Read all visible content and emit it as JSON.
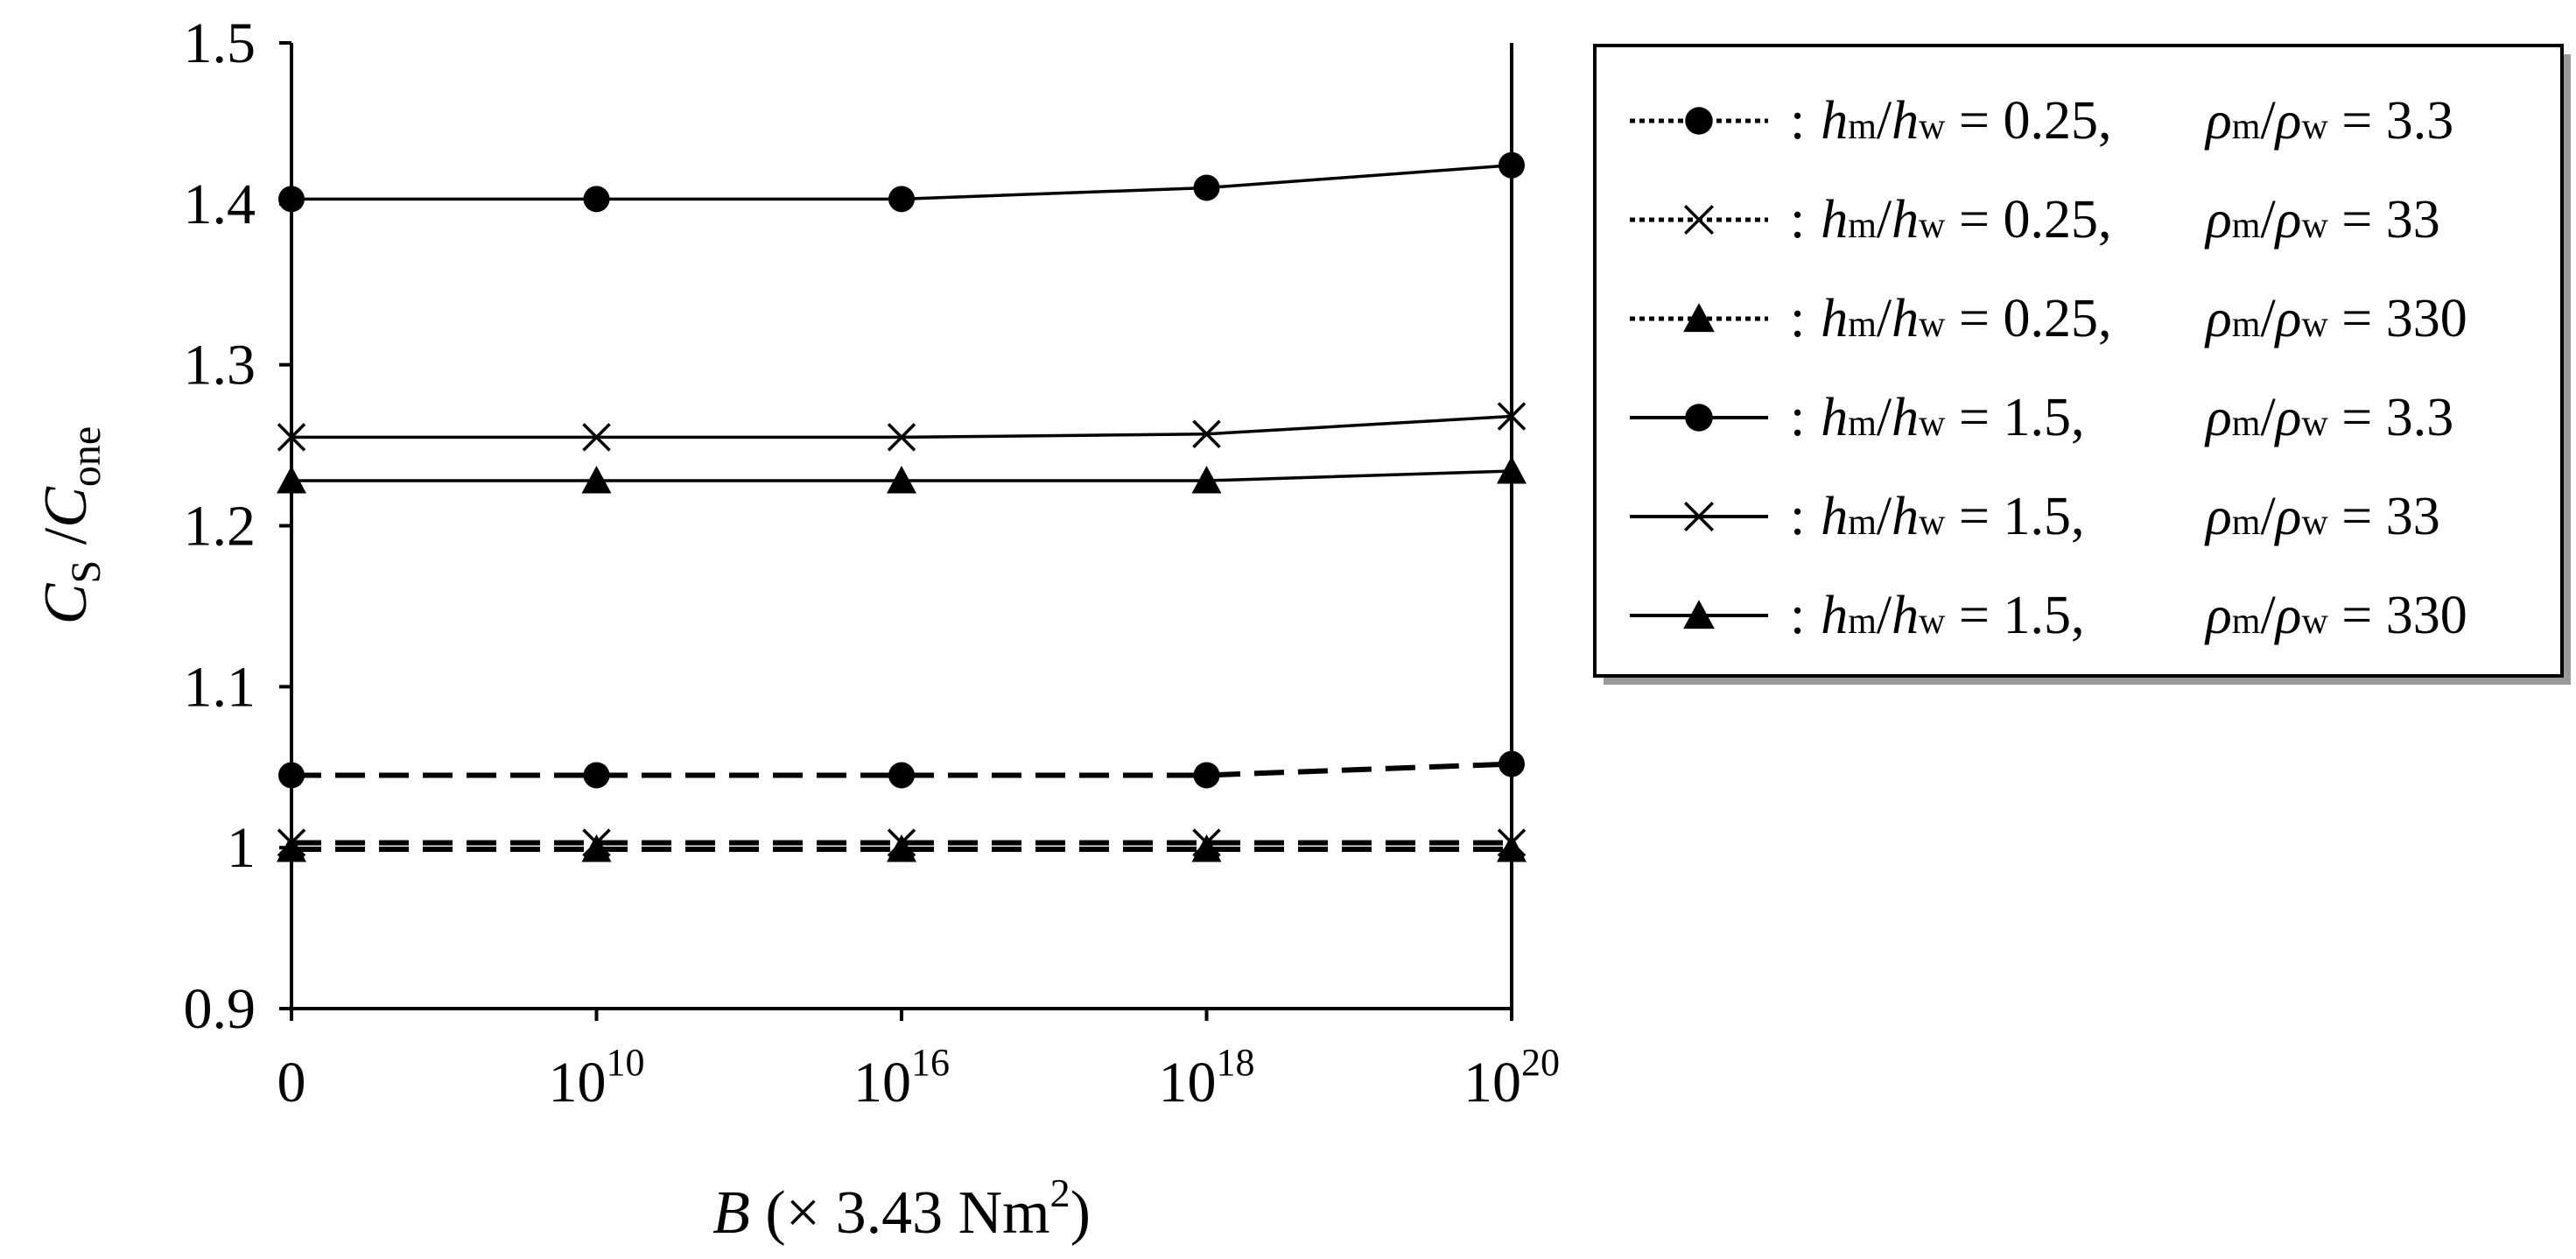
{
  "chart_data": {
    "type": "line",
    "title": "",
    "xlabel": {
      "var": "B",
      "rest": " (× 3.43 Nm",
      "sup": "2",
      "close": ")"
    },
    "ylabel": {
      "c1": "C",
      "sub1": "S",
      "slash": " /",
      "c2": "C",
      "sub2": "one"
    },
    "categories": [
      {
        "base": "0",
        "exp": ""
      },
      {
        "base": "10",
        "exp": "10"
      },
      {
        "base": "10",
        "exp": "16"
      },
      {
        "base": "10",
        "exp": "18"
      },
      {
        "base": "10",
        "exp": "20"
      }
    ],
    "ylim": [
      0.9,
      1.5
    ],
    "yticks": [
      "0.9",
      "1",
      "1.1",
      "1.2",
      "1.3",
      "1.4",
      "1.5"
    ],
    "grid": false,
    "legend_position": "right",
    "series": [
      {
        "name": "hm/hw = 0.25, ρm/ρw = 3.3",
        "hratio": "0.25,",
        "rhoratio": "3.3",
        "marker": "circle",
        "style": "dashed",
        "values": [
          1.045,
          1.045,
          1.045,
          1.045,
          1.052
        ]
      },
      {
        "name": "hm/hw = 0.25, ρm/ρw = 33",
        "hratio": "0.25,",
        "rhoratio": "33",
        "marker": "cross",
        "style": "dashed",
        "values": [
          1.003,
          1.003,
          1.003,
          1.003,
          1.003
        ]
      },
      {
        "name": "hm/hw = 0.25, ρm/ρw = 330",
        "hratio": "0.25,",
        "rhoratio": "330",
        "marker": "triangle",
        "style": "dashed",
        "values": [
          0.999,
          0.999,
          0.999,
          0.999,
          0.999
        ]
      },
      {
        "name": "hm/hw = 1.5, ρm/ρw = 3.3",
        "hratio": "1.5,",
        "rhoratio": "3.3",
        "marker": "circle",
        "style": "solid",
        "values": [
          1.403,
          1.403,
          1.403,
          1.41,
          1.424
        ]
      },
      {
        "name": "hm/hw = 1.5, ρm/ρw = 33",
        "hratio": "1.5,",
        "rhoratio": "33",
        "marker": "cross",
        "style": "solid",
        "values": [
          1.255,
          1.255,
          1.255,
          1.257,
          1.268
        ]
      },
      {
        "name": "hm/hw = 1.5, ρm/ρw = 330",
        "hratio": "1.5,",
        "rhoratio": "330",
        "marker": "triangle",
        "style": "solid",
        "values": [
          1.228,
          1.228,
          1.228,
          1.228,
          1.234
        ]
      }
    ],
    "legend_parts": {
      "colon": ":",
      "h": "h",
      "m": "m",
      "w": "w",
      "rho": "ρ",
      "slash": "/",
      "eq": " = "
    }
  }
}
